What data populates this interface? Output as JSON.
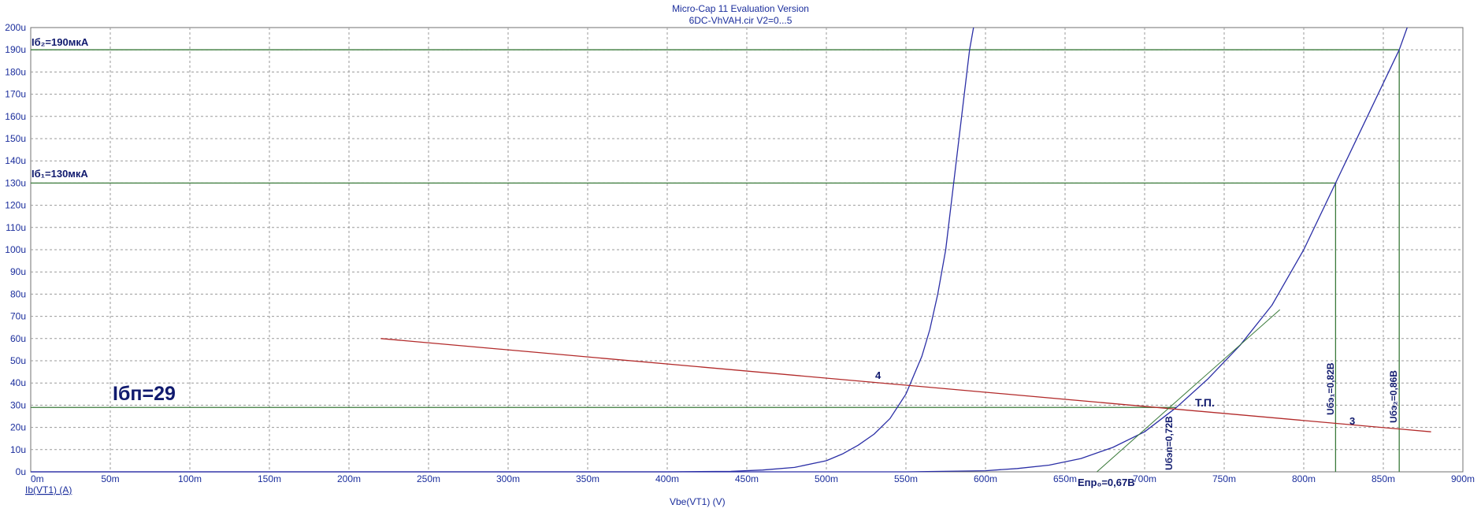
{
  "header": {
    "title": "Micro-Cap 11 Evaluation Version",
    "subtitle": "6DC-VhVAH.cir V2=0...5"
  },
  "chart_data": {
    "type": "line",
    "xlabel": "Vbe(VT1) (V)",
    "ylabel": "Ib(VT1) (A)",
    "xlim": [
      0,
      0.9
    ],
    "ylim": [
      0,
      200
    ],
    "grid": true,
    "x_ticks": [
      "0m",
      "50m",
      "100m",
      "150m",
      "200m",
      "250m",
      "300m",
      "350m",
      "400m",
      "450m",
      "500m",
      "550m",
      "600m",
      "650m",
      "700m",
      "750m",
      "800m",
      "850m",
      "900m"
    ],
    "y_ticks": [
      "0u",
      "10u",
      "20u",
      "30u",
      "40u",
      "50u",
      "60u",
      "70u",
      "80u",
      "90u",
      "100u",
      "110u",
      "120u",
      "130u",
      "140u",
      "150u",
      "160u",
      "170u",
      "180u",
      "190u",
      "200u"
    ],
    "series": [
      {
        "color": "#2b2fa6",
        "x": [
          0,
          0.25,
          0.4,
          0.44,
          0.46,
          0.48,
          0.5,
          0.51,
          0.52,
          0.53,
          0.54,
          0.55,
          0.56,
          0.565,
          0.57,
          0.575,
          0.58,
          0.585,
          0.59,
          0.5925
        ],
        "y": [
          0,
          0,
          0,
          0.2,
          0.8,
          2,
          5,
          8,
          12,
          17,
          24,
          35,
          52,
          64,
          80,
          100,
          130,
          160,
          190,
          200
        ]
      },
      {
        "color": "#2b2fa6",
        "x": [
          0,
          0.4,
          0.55,
          0.6,
          0.62,
          0.64,
          0.66,
          0.68,
          0.7,
          0.72,
          0.74,
          0.76,
          0.78,
          0.8,
          0.82,
          0.84,
          0.86,
          0.865
        ],
        "y": [
          0,
          0,
          0,
          0.5,
          1.5,
          3,
          6,
          11,
          18,
          29,
          42,
          57,
          75,
          100,
          130,
          160,
          190,
          200
        ]
      },
      {
        "color": "#b22a2a",
        "x": [
          0.22,
          0.88
        ],
        "y": [
          60,
          18
        ]
      },
      {
        "color": "#3a7a3a",
        "x": [
          0.67,
          0.785
        ],
        "y": [
          0,
          73
        ]
      }
    ],
    "guides": {
      "h": [
        {
          "y": 29,
          "x": [
            0,
            0.72
          ]
        },
        {
          "y": 130,
          "x": [
            0,
            0.82
          ]
        },
        {
          "y": 190,
          "x": [
            0,
            0.86
          ]
        }
      ],
      "v": [
        {
          "x": 0.82,
          "y": [
            0,
            130
          ]
        },
        {
          "x": 0.86,
          "y": [
            0,
            190
          ]
        }
      ]
    },
    "annotations": {
      "ib2": "Iб₂=190мкА",
      "ib1": "Iб₁=130мкА",
      "ibp": "Iбп=29",
      "tp": "Т.П.",
      "label4": "4",
      "label3": "3",
      "epr": "Eпр₀=0,67В",
      "ubep": "Uбэп=0,72В",
      "ube1": "Uбэ₁=0,82В",
      "ube2": "Uбэ₂=0,86В"
    },
    "colors": {
      "axis_text": "#1a2d9c",
      "grid": "#9a9a9a",
      "guide": "#3a7a3a",
      "curve": "#2b2fa6",
      "loadline": "#b22a2a",
      "annotation": "#101a6e"
    }
  }
}
